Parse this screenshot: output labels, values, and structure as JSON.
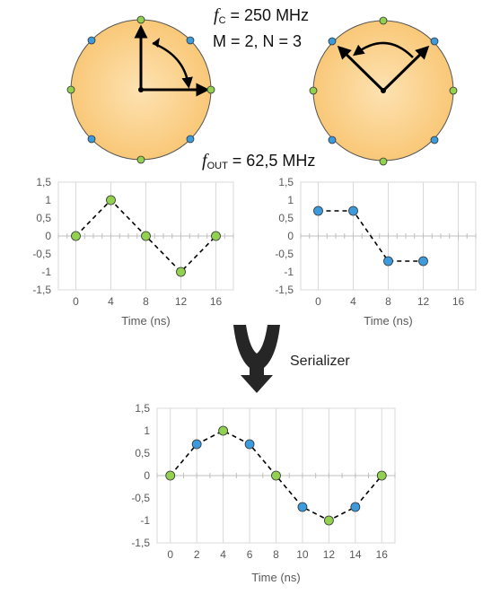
{
  "annotations": {
    "fc_symbol": "f",
    "fc_sub": "C",
    "fc_value": " = 250 MHz",
    "mn": "M = 2, N = 3",
    "fout_symbol": "f",
    "fout_sub": "OUT",
    "fout_value": " = 62,5 MHz"
  },
  "serializer_label": "Serializer",
  "colors": {
    "disk": "#f9c878",
    "disk_center": "#fde2b2",
    "green": "#92d050",
    "blue": "#3c9bdc"
  },
  "chart_data": [
    {
      "type": "scatter",
      "name": "left",
      "x": [
        0,
        4,
        8,
        12,
        16
      ],
      "y": [
        0,
        1,
        0,
        -1,
        0
      ],
      "point_colors": [
        "green",
        "green",
        "green",
        "green",
        "green"
      ],
      "line": "dashed",
      "xticks": [
        "0",
        "4",
        "8",
        "12",
        "16"
      ],
      "xlabel": "Time (ns)",
      "yticks": [
        "1,5",
        "1",
        "0,5",
        "0",
        "-0,5",
        "-1",
        "-1,5"
      ],
      "xlim": [
        -2,
        18
      ],
      "ylim": [
        -1.5,
        1.5
      ]
    },
    {
      "type": "scatter",
      "name": "right",
      "x": [
        0,
        4,
        8,
        12
      ],
      "y": [
        0.7,
        0.7,
        -0.7,
        -0.7
      ],
      "point_colors": [
        "blue",
        "blue",
        "blue",
        "blue"
      ],
      "line": "dashed",
      "xticks": [
        "0",
        "4",
        "8",
        "12",
        "16"
      ],
      "xlabel": "Time (ns)",
      "yticks": [
        "1,5",
        "1",
        "0,5",
        "0",
        "-0,5",
        "-1",
        "-1,5"
      ],
      "xlim": [
        -2,
        18
      ],
      "ylim": [
        -1.5,
        1.5
      ]
    },
    {
      "type": "scatter",
      "name": "serialized",
      "x": [
        0,
        2,
        4,
        6,
        8,
        10,
        12,
        14,
        16
      ],
      "y": [
        0,
        0.7,
        1,
        0.7,
        0,
        -0.7,
        -1,
        -0.7,
        0
      ],
      "point_colors": [
        "green",
        "blue",
        "green",
        "blue",
        "green",
        "blue",
        "green",
        "blue",
        "green"
      ],
      "line": "dashed",
      "xticks": [
        "0",
        "2",
        "4",
        "6",
        "8",
        "10",
        "12",
        "14",
        "16"
      ],
      "xlabel": "Time (ns)",
      "yticks": [
        "1,5",
        "1",
        "0,5",
        "0",
        "-0,5",
        "-1",
        "-1,5"
      ],
      "xlim": [
        -1,
        17
      ],
      "ylim": [
        -1.5,
        1.5
      ]
    }
  ]
}
